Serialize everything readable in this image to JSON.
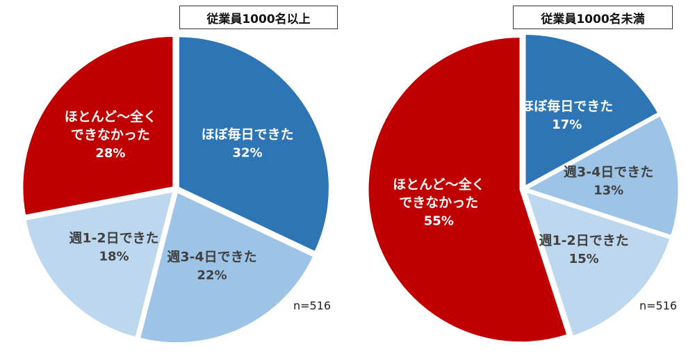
{
  "charts": [
    {
      "title": "従業員1000名以上",
      "n_label": "n=516"
    },
    {
      "title": "従業員1000名未満",
      "n_label": "n=516"
    }
  ],
  "colors": {
    "daily": "#2e75b6",
    "w34": "#9dc3e6",
    "w12": "#bdd7ee",
    "rarely": "#c00000",
    "text_dark": "#404040",
    "text_light": "#ffffff"
  },
  "chart_data": [
    {
      "type": "pie",
      "title": "従業員1000名以上",
      "annotation": "n=516",
      "slices": [
        {
          "label": "ほぼ毎日できた",
          "value": 32,
          "pct_text": "32%"
        },
        {
          "label": "週3-4日できた",
          "value": 22,
          "pct_text": "22%"
        },
        {
          "label": "週1-2日できた",
          "value": 18,
          "pct_text": "18%"
        },
        {
          "label": "ほとんど～全く\nできなかった",
          "value": 28,
          "pct_text": "28%"
        }
      ]
    },
    {
      "type": "pie",
      "title": "従業員1000名未満",
      "annotation": "n=516",
      "slices": [
        {
          "label": "ほぼ毎日できた",
          "value": 17,
          "pct_text": "17%"
        },
        {
          "label": "週3-4日できた",
          "value": 13,
          "pct_text": "13%"
        },
        {
          "label": "週1-2日できた",
          "value": 15,
          "pct_text": "15%"
        },
        {
          "label": "ほとんど～全く\nできなかった",
          "value": 55,
          "pct_text": "55%"
        }
      ]
    }
  ]
}
